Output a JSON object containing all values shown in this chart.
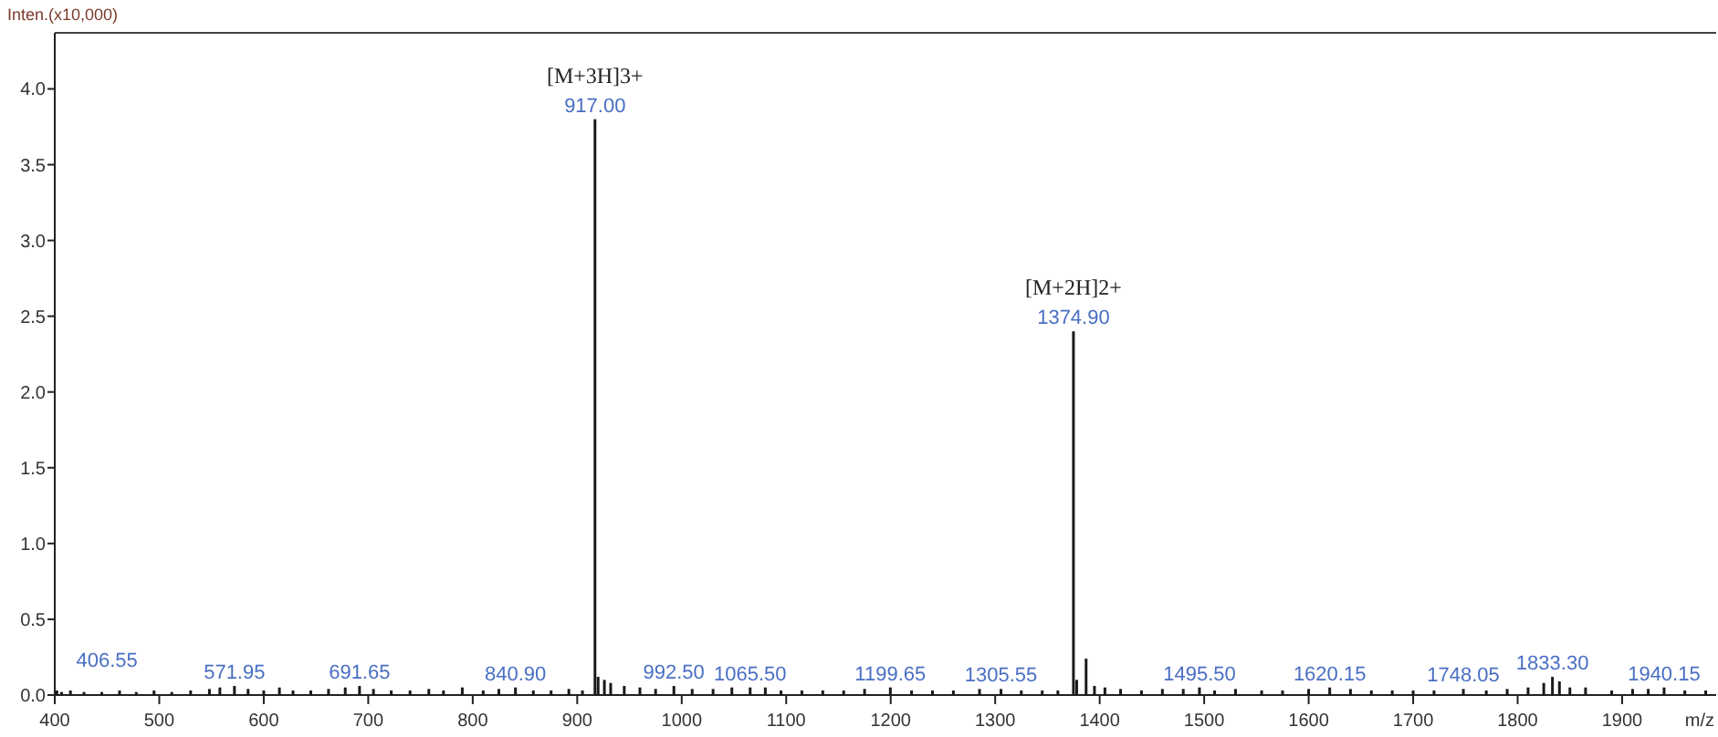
{
  "chart_data": {
    "type": "bar",
    "ylabel": "Inten.(x10,000)",
    "xlabel": "m/z",
    "color": "#1a1a1a",
    "x": [
      402,
      406.55,
      415,
      428,
      445,
      462,
      478,
      495,
      512,
      530,
      548,
      558,
      571.95,
      585,
      600,
      615,
      628,
      645,
      662,
      678,
      691.65,
      705,
      722,
      740,
      758,
      772,
      790,
      810,
      825,
      840.9,
      858,
      875,
      892,
      905,
      917,
      920,
      926,
      932,
      945,
      960,
      975,
      992.5,
      1010,
      1030,
      1048,
      1065.5,
      1080,
      1095,
      1115,
      1135,
      1155,
      1175,
      1199.65,
      1220,
      1240,
      1260,
      1285,
      1305.55,
      1325,
      1345,
      1360,
      1374.9,
      1378,
      1387,
      1395,
      1405,
      1420,
      1440,
      1460,
      1480,
      1495.5,
      1510,
      1530,
      1555,
      1575,
      1600,
      1620.15,
      1640,
      1660,
      1680,
      1700,
      1720,
      1748.05,
      1770,
      1790,
      1810,
      1825,
      1833.3,
      1840,
      1850,
      1865,
      1890,
      1910,
      1925,
      1940.15,
      1960,
      1980
    ],
    "values": [
      0.03,
      0.02,
      0.03,
      0.02,
      0.02,
      0.03,
      0.02,
      0.03,
      0.02,
      0.03,
      0.04,
      0.05,
      0.06,
      0.04,
      0.03,
      0.05,
      0.03,
      0.03,
      0.04,
      0.05,
      0.06,
      0.04,
      0.03,
      0.03,
      0.04,
      0.03,
      0.05,
      0.03,
      0.04,
      0.05,
      0.03,
      0.03,
      0.04,
      0.03,
      3.8,
      0.12,
      0.1,
      0.08,
      0.06,
      0.05,
      0.04,
      0.06,
      0.04,
      0.04,
      0.05,
      0.05,
      0.05,
      0.03,
      0.03,
      0.03,
      0.03,
      0.04,
      0.05,
      0.03,
      0.03,
      0.03,
      0.04,
      0.04,
      0.03,
      0.03,
      0.03,
      2.4,
      0.1,
      0.24,
      0.06,
      0.05,
      0.04,
      0.03,
      0.04,
      0.04,
      0.05,
      0.03,
      0.04,
      0.03,
      0.03,
      0.04,
      0.05,
      0.04,
      0.03,
      0.03,
      0.03,
      0.03,
      0.04,
      0.03,
      0.04,
      0.05,
      0.08,
      0.12,
      0.09,
      0.05,
      0.05,
      0.03,
      0.04,
      0.04,
      0.05,
      0.03,
      0.03
    ],
    "xlim": [
      400,
      1990
    ],
    "xticks": [
      400,
      500,
      600,
      700,
      800,
      900,
      1000,
      1100,
      1200,
      1300,
      1400,
      1500,
      1600,
      1700,
      1800,
      1900
    ],
    "ylim": [
      0,
      4.37
    ],
    "yticks": [
      {
        "value": 0,
        "label": "0.0"
      },
      {
        "value": 0.5,
        "label": "0.5"
      },
      {
        "value": 1,
        "label": "1.0"
      },
      {
        "value": 1.5,
        "label": "1.5"
      },
      {
        "value": 2,
        "label": "2.0"
      },
      {
        "value": 2.5,
        "label": "2.5"
      },
      {
        "value": 3,
        "label": "3.0"
      },
      {
        "value": 3.5,
        "label": "3.5"
      },
      {
        "value": 4,
        "label": "4.0"
      }
    ],
    "annotations": [
      {
        "text": "406.55",
        "x": 406.55,
        "y": 0.02
      },
      {
        "text": "571.95",
        "x": 571.95,
        "y": 0.06
      },
      {
        "text": "691.65",
        "x": 691.65,
        "y": 0.06
      },
      {
        "text": "840.90",
        "x": 840.9,
        "y": 0.05
      },
      {
        "text": "917.00",
        "x": 917,
        "y": 3.8
      },
      {
        "text": "[M+3H]3+",
        "x": 917,
        "y": 3.8
      },
      {
        "text": "992.50",
        "x": 992.5,
        "y": 0.06
      },
      {
        "text": "1065.50",
        "x": 1065.5,
        "y": 0.05
      },
      {
        "text": "1199.65",
        "x": 1199.65,
        "y": 0.05
      },
      {
        "text": "1305.55",
        "x": 1305.55,
        "y": 0.04
      },
      {
        "text": "1374.90",
        "x": 1374.9,
        "y": 2.4
      },
      {
        "text": "[M+2H]2+",
        "x": 1374.9,
        "y": 2.4
      },
      {
        "text": "1495.50",
        "x": 1495.5,
        "y": 0.05
      },
      {
        "text": "1620.15",
        "x": 1620.15,
        "y": 0.05
      },
      {
        "text": "1748.05",
        "x": 1748.05,
        "y": 0.04
      },
      {
        "text": "1833.30",
        "x": 1833.3,
        "y": 0.12
      },
      {
        "text": "1940.15",
        "x": 1940.15,
        "y": 0.05
      }
    ]
  }
}
